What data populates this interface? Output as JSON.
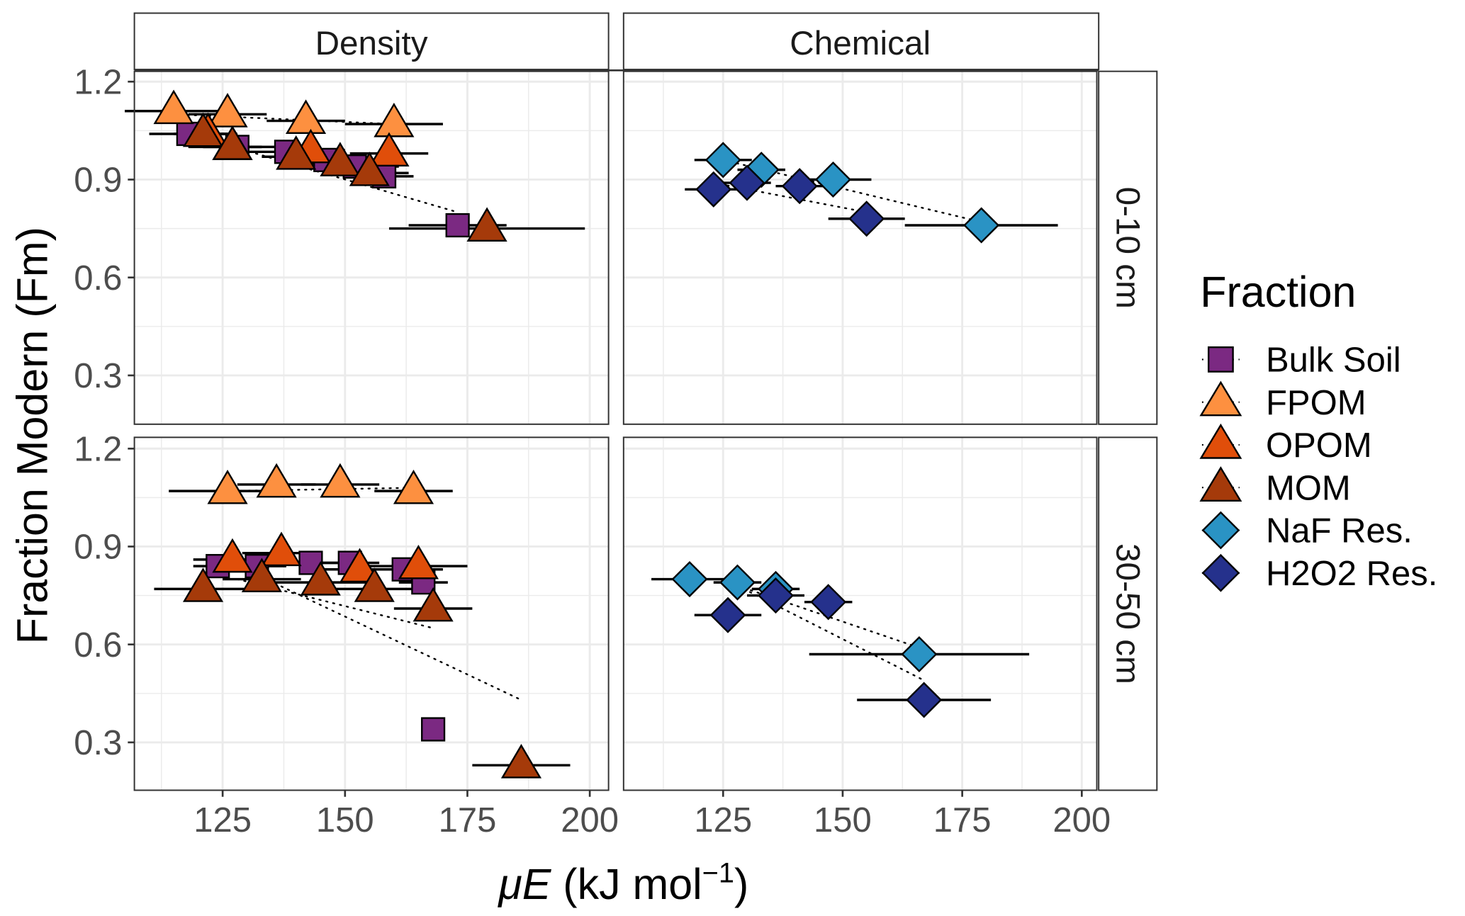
{
  "chart_data": {
    "type": "scatter",
    "xlabel_italic": "μE",
    "xlabel_rest": " (kJ  mol",
    "xlabel_sup": "−1",
    "xlabel_close": ")",
    "ylabel": "Fraction Modern (Fm)",
    "xlim": [
      107,
      204
    ],
    "ylim": [
      0.15,
      1.232
    ],
    "x_ticks": [
      "125",
      "150",
      "175",
      "200"
    ],
    "x_tick_values": [
      125,
      150,
      175,
      200
    ],
    "y_ticks": [
      "0.3",
      "0.6",
      "0.9",
      "1.2"
    ],
    "y_tick_values": [
      0.3,
      0.6,
      0.9,
      1.2
    ],
    "grid": true,
    "columns": [
      "Density",
      "Chemical"
    ],
    "rows": [
      "0-10 cm",
      "30-50 cm"
    ],
    "legend": {
      "title": "Fraction",
      "placement": "right",
      "entries": [
        {
          "name": "Bulk Soil",
          "shape": "square",
          "color": "#7B2982"
        },
        {
          "name": "FPOM",
          "shape": "triangle",
          "color": "#FD9040"
        },
        {
          "name": "OPOM",
          "shape": "triangle",
          "color": "#E04E0A"
        },
        {
          "name": "MOM",
          "shape": "triangle",
          "color": "#A53A0A"
        },
        {
          "name": "NaF Res.",
          "shape": "diamond",
          "color": "#2A93C4"
        },
        {
          "name": "H2O2 Res.",
          "shape": "diamond",
          "color": "#25318C"
        }
      ]
    },
    "panels": [
      {
        "column": "Density",
        "row": "0-10 cm",
        "series": [
          {
            "name": "Bulk Soil",
            "x": [
              118,
              128,
              138,
              146,
              152,
              158,
              173
            ],
            "y": [
              1.04,
              1.0,
              0.985,
              0.96,
              0.94,
              0.91,
              0.76
            ],
            "xerr": [
              8,
              10,
              9,
              8,
              9,
              6,
              10
            ]
          },
          {
            "name": "FPOM",
            "x": [
              115,
              126,
              142,
              160
            ],
            "y": [
              1.11,
              1.1,
              1.08,
              1.07
            ],
            "xerr": [
              10,
              8,
              8,
              10
            ]
          },
          {
            "name": "OPOM",
            "x": [
              122,
              127,
              143,
              159
            ],
            "y": [
              1.04,
              1.0,
              0.99,
              0.98
            ],
            "xerr": [
              6,
              6,
              7,
              8
            ]
          },
          {
            "name": "MOM",
            "x": [
              121,
              127,
              140,
              149,
              155,
              179
            ],
            "y": [
              1.04,
              1.0,
              0.97,
              0.95,
              0.92,
              0.75
            ],
            "xerr": [
              6,
              6,
              7,
              8,
              8,
              20
            ]
          }
        ]
      },
      {
        "column": "Chemical",
        "row": "0-10 cm",
        "series": [
          {
            "name": "NaF Res.",
            "x": [
              125,
              133,
              148,
              179
            ],
            "y": [
              0.96,
              0.93,
              0.9,
              0.76
            ],
            "xerr": [
              6,
              5,
              8,
              16
            ]
          },
          {
            "name": "H2O2 Res.",
            "x": [
              123,
              130,
              141,
              155
            ],
            "y": [
              0.87,
              0.89,
              0.88,
              0.78
            ],
            "xerr": [
              6,
              5,
              5,
              8
            ]
          }
        ]
      },
      {
        "column": "Density",
        "row": "30-50 cm",
        "series": [
          {
            "name": "Bulk Soil",
            "x": [
              124,
              132,
              143,
              151,
              162,
              166,
              168
            ],
            "y": [
              0.84,
              0.84,
              0.85,
              0.85,
              0.83,
              0.79,
              0.34
            ],
            "xerr": [
              5,
              6,
              6,
              6,
              8,
              5,
              0
            ]
          },
          {
            "name": "FPOM",
            "x": [
              126,
              136,
              149,
              164
            ],
            "y": [
              1.07,
              1.09,
              1.09,
              1.07
            ],
            "xerr": [
              12,
              8,
              8,
              8
            ]
          },
          {
            "name": "OPOM",
            "x": [
              127,
              137,
              153,
              165
            ],
            "y": [
              0.86,
              0.88,
              0.83,
              0.84
            ],
            "xerr": [
              8,
              8,
              8,
              10
            ]
          },
          {
            "name": "MOM",
            "x": [
              121,
              133,
              145,
              156,
              168
            ],
            "y": [
              0.77,
              0.8,
              0.79,
              0.77,
              0.71
            ],
            "xerr": [
              10,
              8,
              10,
              8,
              8
            ]
          },
          {
            "name": "MOM",
            "x": [
              186
            ],
            "y": [
              0.23
            ],
            "xerr": [
              10
            ]
          }
        ]
      },
      {
        "column": "Chemical",
        "row": "30-50 cm",
        "series": [
          {
            "name": "NaF Res.",
            "x": [
              118,
              128,
              136,
              166
            ],
            "y": [
              0.8,
              0.79,
              0.77,
              0.57
            ],
            "xerr": [
              8,
              5,
              5,
              23
            ]
          },
          {
            "name": "H2O2 Res.",
            "x": [
              126,
              136,
              147,
              167
            ],
            "y": [
              0.69,
              0.75,
              0.73,
              0.43
            ],
            "xerr": [
              7,
              6,
              5,
              14
            ]
          }
        ]
      }
    ],
    "trend_lines": [
      {
        "column": "Density",
        "row": "0-10 cm",
        "name": "Bulk Soil",
        "from": [
          118,
          1.04
        ],
        "to": [
          173,
          0.8
        ]
      },
      {
        "column": "Density",
        "row": "0-10 cm",
        "name": "FPOM",
        "from": [
          115,
          1.1
        ],
        "to": [
          160,
          1.07
        ]
      },
      {
        "column": "Chemical",
        "row": "0-10 cm",
        "name": "NaF Res.",
        "from": [
          125,
          0.96
        ],
        "to": [
          179,
          0.77
        ]
      },
      {
        "column": "Chemical",
        "row": "0-10 cm",
        "name": "H2O2 Res.",
        "from": [
          123,
          0.89
        ],
        "to": [
          155,
          0.8
        ]
      },
      {
        "column": "Density",
        "row": "30-50 cm",
        "name": "FPOM",
        "from": [
          126,
          1.07
        ],
        "to": [
          164,
          1.08
        ]
      },
      {
        "column": "Density",
        "row": "30-50 cm",
        "name": "Bulk Soil",
        "from": [
          124,
          0.87
        ],
        "to": [
          186,
          0.43
        ]
      },
      {
        "column": "Density",
        "row": "30-50 cm",
        "name": "MOM",
        "from": [
          128,
          0.8
        ],
        "to": [
          168,
          0.65
        ]
      },
      {
        "column": "Chemical",
        "row": "30-50 cm",
        "name": "NaF Res.",
        "from": [
          128,
          0.78
        ],
        "to": [
          166,
          0.59
        ]
      },
      {
        "column": "Chemical",
        "row": "30-50 cm",
        "name": "H2O2 Res.",
        "from": [
          128,
          0.78
        ],
        "to": [
          167,
          0.49
        ]
      }
    ]
  }
}
